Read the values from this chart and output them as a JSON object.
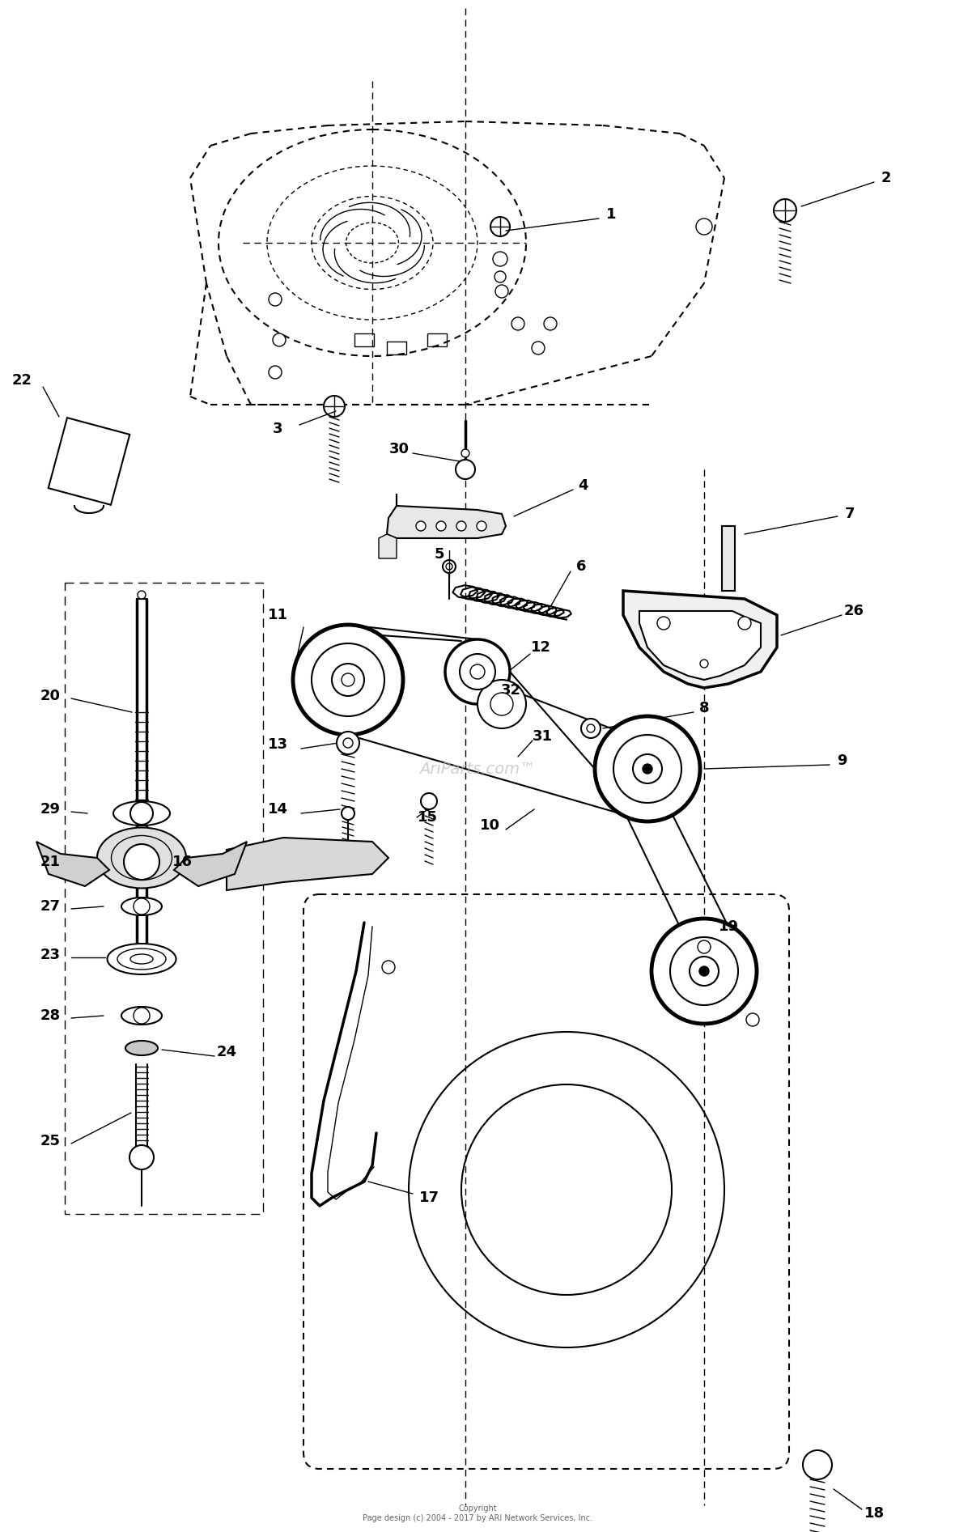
{
  "copyright": "Copyright\nPage design (c) 2004 - 2017 by ARI Network Services, Inc.",
  "watermark": "AriParts.com™",
  "bg": "#ffffff",
  "lc": "#000000"
}
